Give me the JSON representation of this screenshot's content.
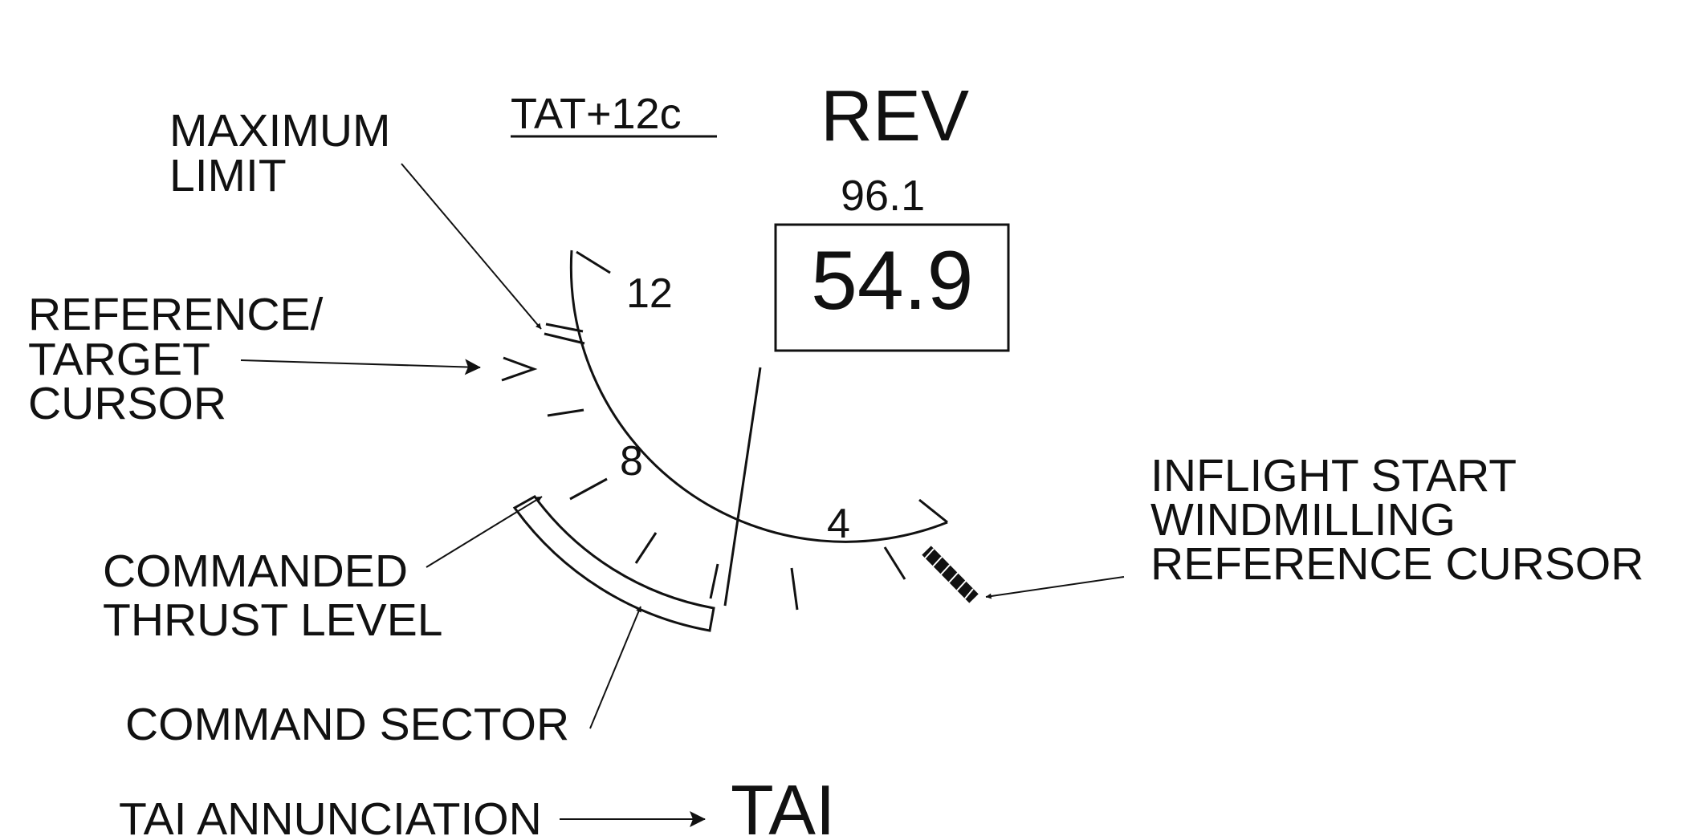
{
  "header": {
    "tat": "TAT+12c",
    "mode": "REV"
  },
  "gauge": {
    "secondary_readout": "96.1",
    "primary_readout": "54.9",
    "scale_labels": [
      "12",
      "8",
      "4"
    ]
  },
  "callouts": {
    "maximum_limit": [
      "MAXIMUM",
      "LIMIT"
    ],
    "reference_target_cursor": [
      "REFERENCE/",
      "TARGET",
      "CURSOR"
    ],
    "commanded_thrust_level": [
      "COMMANDED",
      "THRUST LEVEL"
    ],
    "command_sector": "COMMAND SECTOR",
    "inflight_start": [
      "INFLIGHT START",
      "WINDMILLING",
      "REFERENCE CURSOR"
    ],
    "tai_annunciation": "TAI ANNUNCIATION"
  },
  "annunciation": {
    "tai": "TAI"
  }
}
